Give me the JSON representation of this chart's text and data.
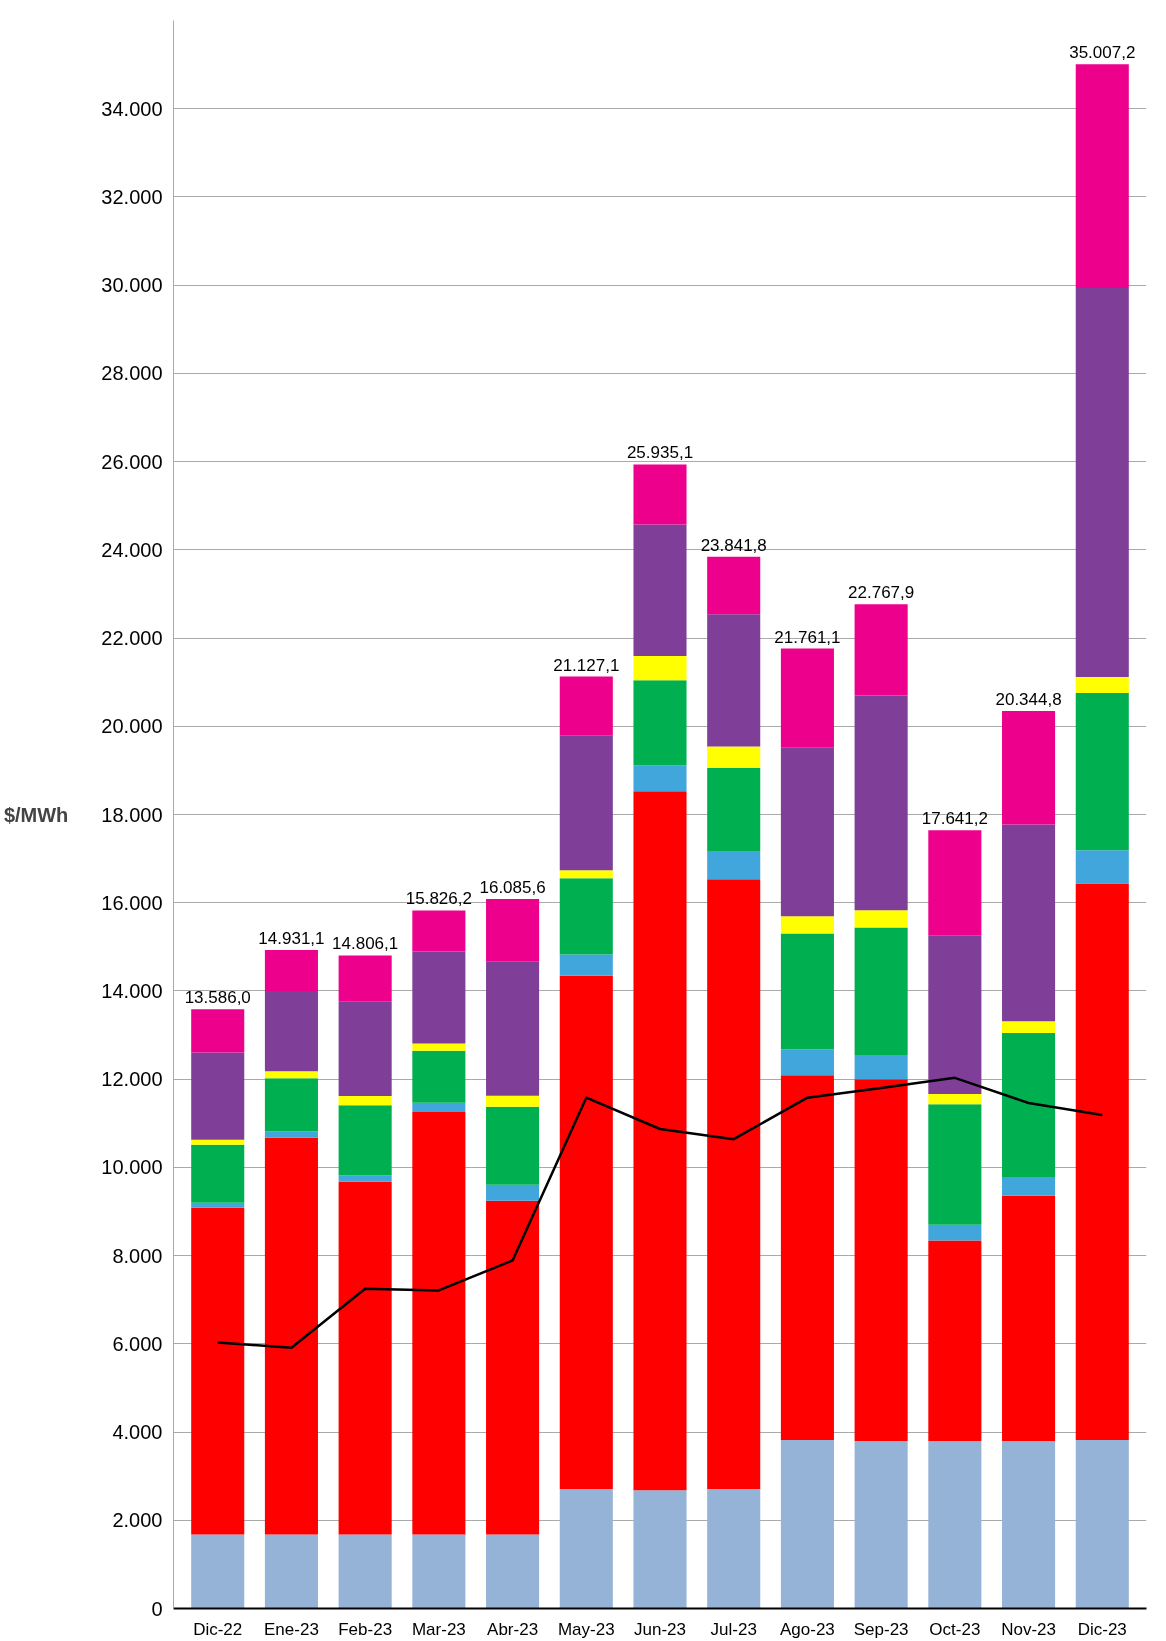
{
  "chart_data": {
    "type": "bar",
    "stacked": true,
    "ylabel": "$/MWh",
    "categories": [
      "Dic-22",
      "Ene-23",
      "Feb-23",
      "Mar-23",
      "Abr-23",
      "May-23",
      "Jun-23",
      "Jul-23",
      "Ago-23",
      "Sep-23",
      "Oct-23",
      "Nov-23",
      "Dic-23"
    ],
    "series": [
      {
        "color": "#95b3d7",
        "values": [
          1680,
          1680,
          1680,
          1680,
          1680,
          2710,
          2680,
          2710,
          3820,
          3800,
          3800,
          3800,
          3820
        ]
      },
      {
        "color": "#ff0000",
        "values": [
          7406,
          8991,
          7996,
          9576,
          7566,
          11637,
          15845,
          13822,
          8271,
          8198,
          4541,
          5555,
          12617
        ]
      },
      {
        "color": "#41a6dc",
        "values": [
          110,
          140,
          140,
          210,
          360,
          480,
          590,
          640,
          590,
          550,
          360,
          410,
          750
        ]
      },
      {
        "color": "#00b050",
        "values": [
          1320,
          1210,
          1590,
          1180,
          1770,
          1730,
          1930,
          1890,
          2620,
          2890,
          2730,
          3280,
          3570
        ]
      },
      {
        "color": "#ffff00",
        "values": [
          110,
          160,
          210,
          160,
          250,
          180,
          550,
          480,
          390,
          390,
          230,
          270,
          360
        ]
      },
      {
        "color": "#7f3f98",
        "values": [
          1980,
          1820,
          2140,
          2090,
          3050,
          3050,
          2980,
          3000,
          3820,
          4870,
          3590,
          4460,
          8820
        ]
      },
      {
        "color": "#ec008c",
        "values": [
          980,
          930,
          1050,
          930,
          1410,
          1340,
          1360,
          1300,
          2250,
          2070,
          2390,
          2570,
          5070
        ]
      },
      {
        "type": "line",
        "color": "#000000",
        "values": [
          6030,
          5910,
          7250,
          7210,
          7890,
          11580,
          10870,
          10640,
          11580,
          11800,
          12030,
          11460,
          11190
        ]
      }
    ],
    "totals": [
      "13.586,0",
      "14.931,1",
      "14.806,1",
      "15.826,2",
      "16.085,6",
      "21.127,1",
      "25.935,1",
      "23.841,8",
      "21.761,1",
      "22.767,9",
      "17.641,2",
      "20.344,8",
      "35.007,2"
    ],
    "ylim": [
      0,
      36000
    ],
    "yticks": [
      {
        "value": 0,
        "label": "0"
      },
      {
        "value": 2000,
        "label": "2.000"
      },
      {
        "value": 4000,
        "label": "4.000"
      },
      {
        "value": 6000,
        "label": "6.000"
      },
      {
        "value": 8000,
        "label": "8.000"
      },
      {
        "value": 10000,
        "label": "10.000"
      },
      {
        "value": 12000,
        "label": "12.000"
      },
      {
        "value": 14000,
        "label": "14.000"
      },
      {
        "value": 16000,
        "label": "16.000"
      },
      {
        "value": 18000,
        "label": "18.000"
      },
      {
        "value": 20000,
        "label": "20.000"
      },
      {
        "value": 22000,
        "label": "22.000"
      },
      {
        "value": 24000,
        "label": "24.000"
      },
      {
        "value": 26000,
        "label": "26.000"
      },
      {
        "value": 28000,
        "label": "28.000"
      },
      {
        "value": 30000,
        "label": "30.000"
      },
      {
        "value": 32000,
        "label": "32.000"
      },
      {
        "value": 34000,
        "label": "34.000"
      }
    ],
    "grid": "y",
    "marker": "none",
    "line_style": "solid"
  }
}
